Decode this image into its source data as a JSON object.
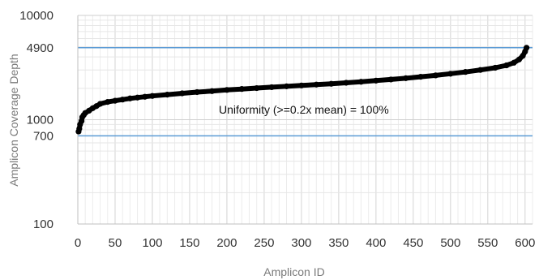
{
  "chart_data": {
    "type": "scatter",
    "title": "",
    "xlabel": "Amplicon ID",
    "ylabel": "Amplicon Coverage Depth",
    "y_scale": "log",
    "xlim": [
      0,
      610
    ],
    "ylim": [
      100,
      10000
    ],
    "x_ticks": [
      0,
      50,
      100,
      150,
      200,
      250,
      300,
      350,
      400,
      450,
      500,
      550,
      600
    ],
    "y_ticks": [
      100,
      700,
      1000,
      4900,
      10000
    ],
    "grid": true,
    "reference_lines": [
      {
        "y": 4900,
        "color": "#5b9bd5"
      },
      {
        "y": 700,
        "color": "#5b9bd5"
      }
    ],
    "annotation": "Uniformity (>=0.2x mean) = 100%",
    "series_color": "#000000",
    "points": [
      [
        1,
        770
      ],
      [
        2,
        820
      ],
      [
        3,
        900
      ],
      [
        5,
        970
      ],
      [
        6,
        1060
      ],
      [
        8,
        1110
      ],
      [
        10,
        1160
      ],
      [
        15,
        1220
      ],
      [
        20,
        1290
      ],
      [
        25,
        1350
      ],
      [
        30,
        1420
      ],
      [
        40,
        1480
      ],
      [
        50,
        1520
      ],
      [
        60,
        1560
      ],
      [
        70,
        1600
      ],
      [
        80,
        1630
      ],
      [
        90,
        1660
      ],
      [
        100,
        1690
      ],
      [
        120,
        1740
      ],
      [
        140,
        1790
      ],
      [
        160,
        1840
      ],
      [
        180,
        1880
      ],
      [
        200,
        1930
      ],
      [
        220,
        1970
      ],
      [
        240,
        2010
      ],
      [
        260,
        2050
      ],
      [
        280,
        2090
      ],
      [
        300,
        2130
      ],
      [
        320,
        2170
      ],
      [
        340,
        2210
      ],
      [
        360,
        2260
      ],
      [
        380,
        2310
      ],
      [
        400,
        2370
      ],
      [
        420,
        2430
      ],
      [
        440,
        2500
      ],
      [
        460,
        2580
      ],
      [
        480,
        2660
      ],
      [
        500,
        2760
      ],
      [
        520,
        2870
      ],
      [
        540,
        3000
      ],
      [
        560,
        3150
      ],
      [
        575,
        3320
      ],
      [
        585,
        3520
      ],
      [
        592,
        3780
      ],
      [
        597,
        4100
      ],
      [
        600,
        4500
      ],
      [
        602,
        4900
      ]
    ]
  }
}
